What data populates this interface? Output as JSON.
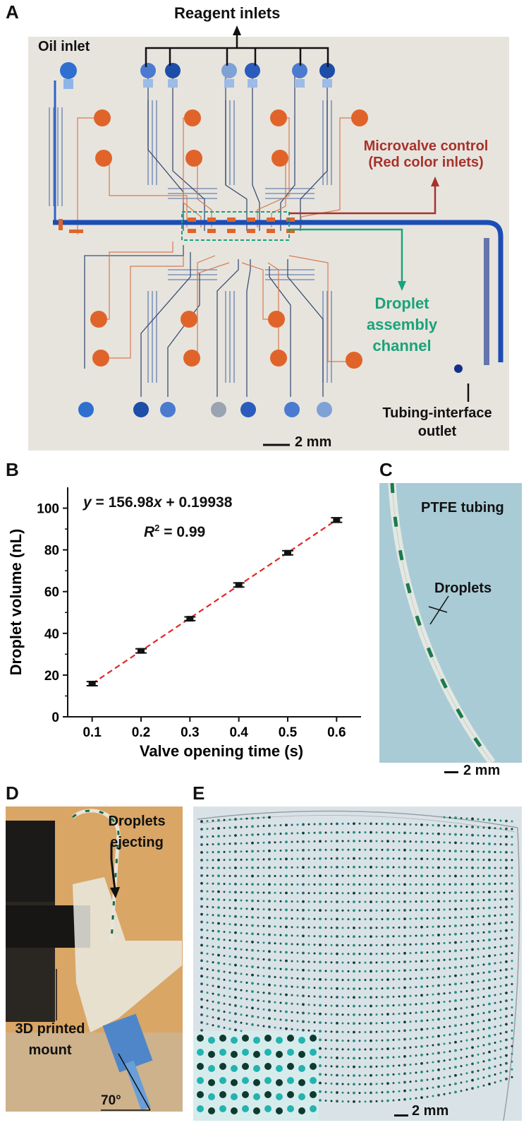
{
  "panels": {
    "a": {
      "letter": "A",
      "labels": {
        "reagent_inlets": "Reagent inlets",
        "oil_inlet": "Oil inlet",
        "microvalve_line1": "Microvalve control",
        "microvalve_line2": "(Red color inlets)",
        "droplet_line1": "Droplet",
        "droplet_line2": "assembly",
        "droplet_line3": "channel",
        "outlet_line1": "Tubing-interface",
        "outlet_line2": "outlet",
        "scale": "2 mm"
      },
      "colors": {
        "microvalve": "#a8322a",
        "droplet": "#1aa37a",
        "oil": "#1b4db5",
        "valve_fill": "#e0642a"
      }
    },
    "b": {
      "letter": "B",
      "equation_y": "y",
      "equation_rest": " = 156.98",
      "equation_x": "x",
      "equation_tail": " + 0.19938",
      "r2_R": "R",
      "r2_sup": "2",
      "r2_value": " = 0.99"
    },
    "c": {
      "letter": "C",
      "label_tubing": "PTFE tubing",
      "label_droplets": "Droplets",
      "scale": "2 mm"
    },
    "d": {
      "letter": "D",
      "label_eject_1": "Droplets",
      "label_eject_2": "ejecting",
      "label_mount_1": "3D printed",
      "label_mount_2": "mount",
      "angle": "70°"
    },
    "e": {
      "letter": "E",
      "scale": "2 mm"
    }
  },
  "chart_data": {
    "type": "scatter",
    "xlabel": "Valve opening time (s)",
    "ylabel": "Droplet volume (nL)",
    "x": [
      0.1,
      0.2,
      0.3,
      0.4,
      0.5,
      0.6
    ],
    "x_tick_labels": [
      "0.1",
      "0.2",
      "0.3",
      "0.4",
      "0.5",
      "0.6"
    ],
    "y_ticks": [
      0,
      20,
      40,
      60,
      80,
      100
    ],
    "y_tick_labels": [
      "0",
      "20",
      "40",
      "60",
      "80",
      "100"
    ],
    "xlim": [
      0.05,
      0.65
    ],
    "ylim": [
      0,
      110
    ],
    "series": [
      {
        "values": [
          15.9,
          31.6,
          47.0,
          63.2,
          78.6,
          94.3
        ],
        "error": [
          1.0,
          1.0,
          0.9,
          1.0,
          1.0,
          1.1
        ],
        "color": "#111111"
      }
    ],
    "fit": {
      "slope": 156.98,
      "intercept": 0.19938,
      "color": "#e32626",
      "style": "dashed"
    }
  }
}
